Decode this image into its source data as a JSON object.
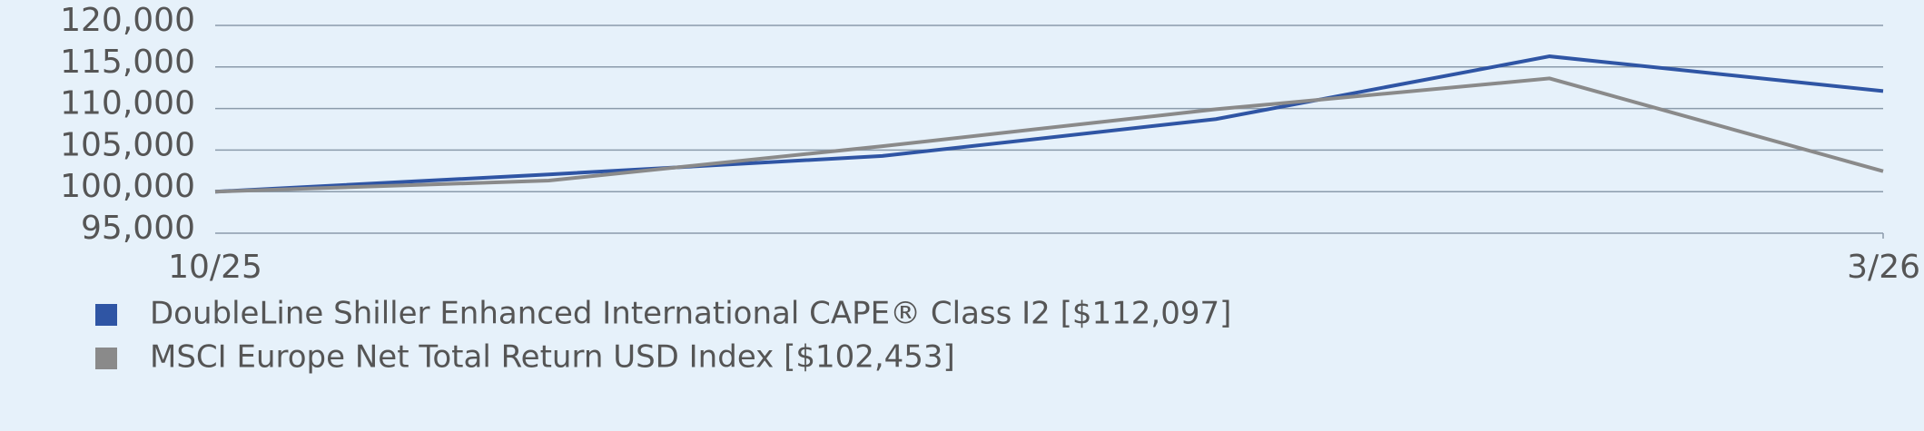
{
  "chart_data": {
    "type": "line",
    "categories": [
      "10/25",
      null,
      null,
      null,
      null,
      "3/26"
    ],
    "series": [
      {
        "name": "DoubleLine Shiller Enhanced International CAPE® Class I2 [$112,097]",
        "color": "#2f55a4",
        "values": [
          100000,
          102070,
          104290,
          108730,
          116280,
          112097
        ]
      },
      {
        "name": "MSCI Europe Net Total Return USD Index [$102,453]",
        "color": "#8a8a8a",
        "values": [
          100000,
          101330,
          105470,
          109910,
          113620,
          102453
        ]
      }
    ],
    "ylim": [
      95000,
      120000
    ],
    "yticks": [
      {
        "value": 95000,
        "label": "95,000"
      },
      {
        "value": 100000,
        "label": "100,000"
      },
      {
        "value": 105000,
        "label": "105,000"
      },
      {
        "value": 110000,
        "label": "110,000"
      },
      {
        "value": 115000,
        "label": "115,000"
      },
      {
        "value": 120000,
        "label": "120,000"
      }
    ],
    "grid": true
  }
}
